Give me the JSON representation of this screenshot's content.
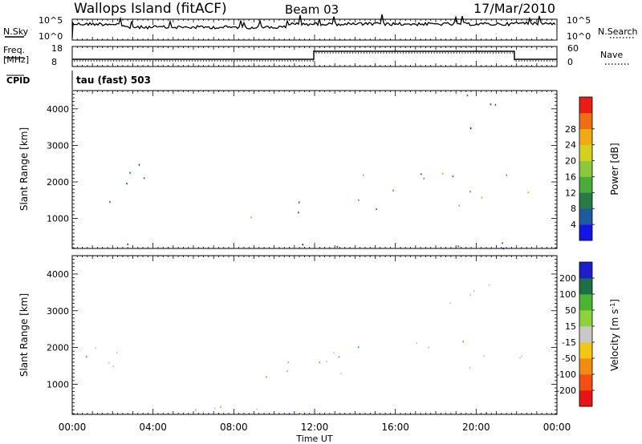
{
  "header": {
    "station": "Wallops Island (fitACF)",
    "beam": "Beam 03",
    "date": "17/Mar/2010"
  },
  "summary_panels": {
    "nsky_label": "N.Sky",
    "nsky_ticks": [
      "10^5",
      "10^0"
    ],
    "nsearch_label": "N.Search",
    "nsearch_ticks": [
      "10^5",
      "10^0"
    ],
    "freq_label_1": "Freq.",
    "freq_label_2": "[MHz]",
    "freq_ticks": [
      "18",
      "8"
    ],
    "nave_label": "Nave",
    "nave_ticks": [
      "60",
      "0"
    ],
    "cpid_label": "CPID",
    "cpid_value": "tau (fast) 503"
  },
  "chart_data": [
    {
      "type": "heatmap",
      "name": "power-panel",
      "xlabel": "Time UT",
      "ylabel": "Slant Range [km]",
      "x_ticks": [
        "00:00",
        "04:00",
        "08:00",
        "12:00",
        "16:00",
        "20:00",
        "00:00"
      ],
      "xlim_hours": [
        0,
        24
      ],
      "ylim_km": [
        180,
        4500
      ],
      "y_ticks": [
        1000,
        2000,
        3000,
        4000
      ],
      "colorbar": {
        "label": "Power [dB]",
        "ticks": [
          4,
          8,
          12,
          16,
          20,
          24,
          28
        ],
        "colors": [
          "#1414e6",
          "#1e5aa0",
          "#287a46",
          "#4aaa3c",
          "#8cc83c",
          "#d2d21e",
          "#f0aa14",
          "#ee6e14",
          "#e61e14"
        ]
      },
      "regions": [
        {
          "t0": 0.1,
          "t1": 3.6,
          "r0": 1300,
          "r1": 2600,
          "level": 10
        },
        {
          "t0": 3.6,
          "t1": 4.6,
          "r0": 1800,
          "r1": 2200,
          "level": 8
        },
        {
          "t0": 8.2,
          "t1": 10.5,
          "r0": 780,
          "r1": 1250,
          "level": 18
        },
        {
          "t0": 10.5,
          "t1": 12.1,
          "r0": 1100,
          "r1": 2100,
          "level": 8
        },
        {
          "t0": 12.1,
          "t1": 21.8,
          "r0": 1500,
          "r1": 2300,
          "level": 14
        },
        {
          "t0": 13.0,
          "t1": 21.5,
          "r0": 1250,
          "r1": 1600,
          "level": 16
        },
        {
          "t0": 22.0,
          "t1": 24.0,
          "r0": 1150,
          "r1": 1950,
          "level": 17
        },
        {
          "t0": 18.5,
          "t1": 21.0,
          "r0": 3200,
          "r1": 4500,
          "level": 6
        },
        {
          "t0": 0.1,
          "t1": 23.9,
          "r0": 200,
          "r1": 420,
          "level": 8
        }
      ]
    },
    {
      "type": "heatmap",
      "name": "velocity-panel",
      "xlabel": "Time UT",
      "ylabel": "Slant Range [km]",
      "x_ticks": [
        "00:00",
        "04:00",
        "08:00",
        "12:00",
        "16:00",
        "20:00",
        "00:00"
      ],
      "xlim_hours": [
        0,
        24
      ],
      "ylim_km": [
        180,
        4500
      ],
      "y_ticks": [
        1000,
        2000,
        3000,
        4000
      ],
      "colorbar": {
        "label": "Velocity [m s^-1]",
        "ticks": [
          200,
          100,
          50,
          15,
          -15,
          -50,
          -100,
          -200
        ],
        "colors": [
          "#1e1ec8",
          "#1e6e46",
          "#4cb432",
          "#8cd23c",
          "#c8c8c8",
          "#f0c814",
          "#f08c14",
          "#f05014",
          "#e61414"
        ]
      },
      "regions": [
        {
          "t0": 0.1,
          "t1": 3.6,
          "r0": 1300,
          "r1": 2500,
          "level": 0
        },
        {
          "t0": 8.2,
          "t1": 10.5,
          "r0": 780,
          "r1": 1250,
          "level": -60
        },
        {
          "t0": 10.5,
          "t1": 12.1,
          "r0": 1100,
          "r1": 2100,
          "level": 30
        },
        {
          "t0": 12.1,
          "t1": 21.8,
          "r0": 1300,
          "r1": 2300,
          "level": 0
        },
        {
          "t0": 22.0,
          "t1": 24.0,
          "r0": 1150,
          "r1": 1950,
          "level": 0
        },
        {
          "t0": 18.5,
          "t1": 21.0,
          "r0": 3200,
          "r1": 4500,
          "level": 0
        },
        {
          "t0": 0.1,
          "t1": 23.9,
          "r0": 200,
          "r1": 420,
          "level": 10
        }
      ]
    }
  ]
}
